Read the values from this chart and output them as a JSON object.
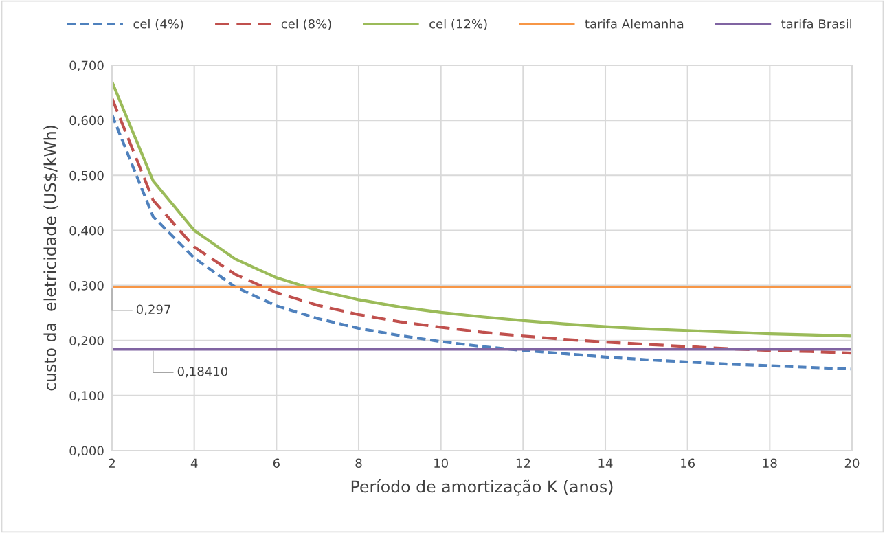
{
  "chart_data": {
    "type": "line",
    "xlabel": "Período de amortização K (anos)",
    "ylabel": "custo da  eletricidade (US$/kWh)",
    "x": [
      2,
      3,
      4,
      5,
      6,
      7,
      8,
      9,
      10,
      11,
      12,
      13,
      14,
      15,
      16,
      17,
      18,
      19,
      20
    ],
    "series": [
      {
        "name": "cel (4%)",
        "color": "#4f81bd",
        "line_style": "dashed",
        "values": [
          0.61,
          0.425,
          0.35,
          0.297,
          0.263,
          0.24,
          0.222,
          0.209,
          0.198,
          0.189,
          0.182,
          0.176,
          0.17,
          0.165,
          0.161,
          0.157,
          0.154,
          0.151,
          0.148
        ]
      },
      {
        "name": "cel (8%)",
        "color": "#c0504d",
        "line_style": "dashed",
        "values": [
          0.64,
          0.455,
          0.37,
          0.32,
          0.287,
          0.264,
          0.247,
          0.234,
          0.224,
          0.215,
          0.208,
          0.202,
          0.197,
          0.193,
          0.189,
          0.185,
          0.182,
          0.18,
          0.177
        ]
      },
      {
        "name": "cel (12%)",
        "color": "#9bbb59",
        "line_style": "solid",
        "values": [
          0.67,
          0.49,
          0.4,
          0.348,
          0.314,
          0.291,
          0.274,
          0.261,
          0.251,
          0.243,
          0.236,
          0.23,
          0.225,
          0.221,
          0.218,
          0.215,
          0.212,
          0.21,
          0.208
        ]
      },
      {
        "name": "tarifa Alemanha",
        "color": "#f79646",
        "line_style": "solid",
        "values": [
          0.297,
          0.297,
          0.297,
          0.297,
          0.297,
          0.297,
          0.297,
          0.297,
          0.297,
          0.297,
          0.297,
          0.297,
          0.297,
          0.297,
          0.297,
          0.297,
          0.297,
          0.297,
          0.297
        ]
      },
      {
        "name": "tarifa Brasil",
        "color": "#8064a2",
        "line_style": "solid",
        "values": [
          0.1841,
          0.1841,
          0.1841,
          0.1841,
          0.1841,
          0.1841,
          0.1841,
          0.1841,
          0.1841,
          0.1841,
          0.1841,
          0.1841,
          0.1841,
          0.1841,
          0.1841,
          0.1841,
          0.1841,
          0.1841,
          0.1841
        ]
      }
    ],
    "annotations": [
      {
        "text": "0,297",
        "x": 2,
        "y": 0.297
      },
      {
        "text": "0,18410",
        "x": 3,
        "y": 0.1841
      }
    ],
    "xlim": [
      2,
      20
    ],
    "xticks": [
      2,
      4,
      6,
      8,
      10,
      12,
      14,
      16,
      18,
      20
    ],
    "ylim": [
      0,
      0.7
    ],
    "yticks": [
      {
        "value": 0,
        "label": "0,000"
      },
      {
        "value": 0.1,
        "label": "0,100"
      },
      {
        "value": 0.2,
        "label": "0,200"
      },
      {
        "value": 0.3,
        "label": "0,300"
      },
      {
        "value": 0.4,
        "label": "0,400"
      },
      {
        "value": 0.5,
        "label": "0,500"
      },
      {
        "value": 0.6,
        "label": "0,600"
      },
      {
        "value": 0.7,
        "label": "0,700"
      }
    ],
    "grid": true,
    "legend": "top",
    "marker": "none"
  }
}
